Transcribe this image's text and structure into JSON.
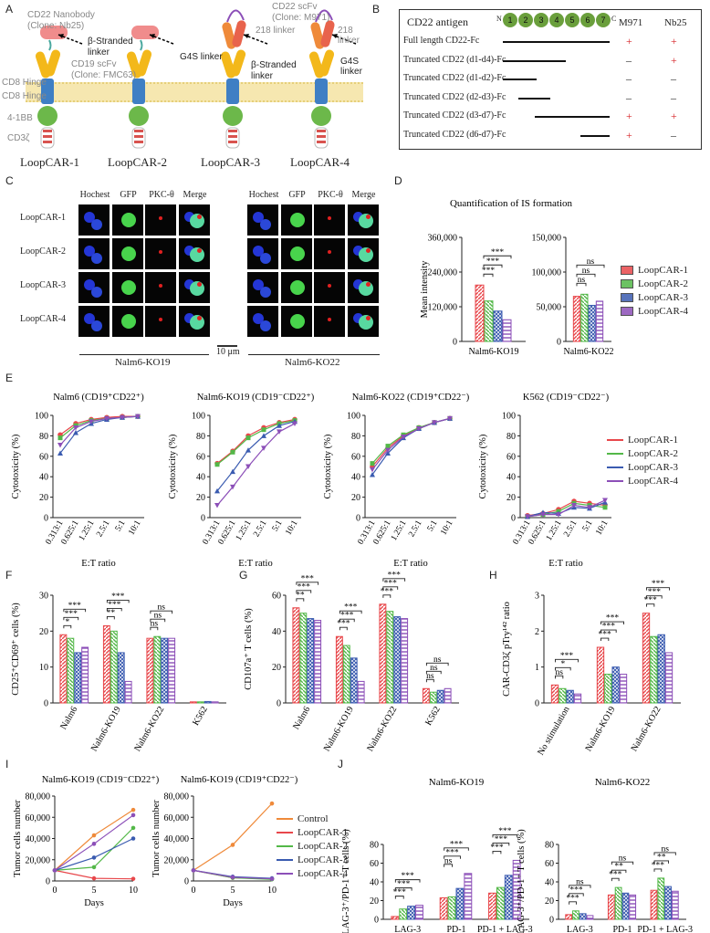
{
  "panels": [
    "A",
    "B",
    "C",
    "D",
    "E",
    "F",
    "G",
    "H",
    "I",
    "J"
  ],
  "panelA": {
    "constructs": [
      "LoopCAR-1",
      "LoopCAR-2",
      "LoopCAR-3",
      "LoopCAR-4"
    ],
    "domains": [
      "CD8 Hinge",
      "CD8 Hinge",
      "4-1BB",
      "CD3ζ"
    ],
    "nb_label": "CD22 Nanobody",
    "nb_clone": "(Clone: Nb25)",
    "scfv19_label": "CD19 scFv",
    "scfv19_clone": "(Clone: FMC63)",
    "scfv22_label": "CD22 scFv",
    "scfv22_clone": "(Clone: M971)",
    "beta_linker": "β-Stranded linker",
    "g4s_linker": "G4S linker",
    "linker218": "218 linker"
  },
  "panelB": {
    "title": "CD22 antigen",
    "n": "N",
    "c": "C",
    "domains": [
      "1",
      "2",
      "3",
      "4",
      "5",
      "6",
      "7"
    ],
    "cols": [
      "M971",
      "Nb25"
    ],
    "rows": [
      {
        "label": "Full length CD22-Fc",
        "m971": "+",
        "nb25": "+"
      },
      {
        "label": "Truncated CD22 (d1-d4)-Fc",
        "m971": "–",
        "nb25": "+"
      },
      {
        "label": "Truncated CD22 (d1-d2)-Fc",
        "m971": "–",
        "nb25": "–"
      },
      {
        "label": "Truncated CD22 (d2-d3)-Fc",
        "m971": "–",
        "nb25": "–"
      },
      {
        "label": "Truncated CD22 (d3-d7)-Fc",
        "m971": "+",
        "nb25": "+"
      },
      {
        "label": "Truncated CD22 (d6-d7)-Fc",
        "m971": "+",
        "nb25": "–"
      }
    ]
  },
  "panelC": {
    "cols": [
      "Hochest",
      "GFP",
      "PKC-θ",
      "Merge"
    ],
    "rows": [
      "LoopCAR-1",
      "LoopCAR-2",
      "LoopCAR-3",
      "LoopCAR-4"
    ],
    "groups": [
      "Nalm6-KO19",
      "Nalm6-KO22"
    ],
    "scale": "10 μm"
  },
  "colors": {
    "LoopCAR-1": "#e8474b",
    "LoopCAR-2": "#53b848",
    "LoopCAR-3": "#3a5bb0",
    "LoopCAR-4": "#8c4fb8",
    "Control": "#ef8a3a",
    "sig": "#222222"
  },
  "legendNames": [
    "LoopCAR-1",
    "LoopCAR-2",
    "LoopCAR-3",
    "LoopCAR-4"
  ],
  "chart_data": [
    {
      "id": "D",
      "type": "bar",
      "title": "Quantification of IS formation",
      "ylabel": "Mean intensity",
      "subplots": [
        {
          "categories": [
            "Nalm6-KO19"
          ],
          "ylim": [
            0,
            360000
          ],
          "yticks": [
            "0",
            "120,000",
            "240,000",
            "360,000"
          ],
          "series": [
            {
              "name": "LoopCAR-1",
              "values": [
                195000
              ]
            },
            {
              "name": "LoopCAR-2",
              "values": [
                140000
              ]
            },
            {
              "name": "LoopCAR-3",
              "values": [
                105000
              ]
            },
            {
              "name": "LoopCAR-4",
              "values": [
                75000
              ]
            }
          ],
          "sig": [
            "***",
            "***",
            "***"
          ]
        },
        {
          "categories": [
            "Nalm6-KO22"
          ],
          "ylim": [
            0,
            150000
          ],
          "yticks": [
            "0",
            "50,000",
            "100,000",
            "150,000"
          ],
          "series": [
            {
              "name": "LoopCAR-1",
              "values": [
                65000
              ]
            },
            {
              "name": "LoopCAR-2",
              "values": [
                68000
              ]
            },
            {
              "name": "LoopCAR-3",
              "values": [
                52000
              ]
            },
            {
              "name": "LoopCAR-4",
              "values": [
                58000
              ]
            }
          ],
          "sig": [
            "ns",
            "ns",
            "ns"
          ]
        }
      ]
    },
    {
      "id": "E",
      "type": "line",
      "ylabel": "Cytotoxicity (%)",
      "xlabel": "E:T ratio",
      "ylim": [
        0,
        100
      ],
      "x": [
        "0.313:1",
        "0.625:1",
        "1.25:1",
        "2.5:1",
        "5:1",
        "10:1"
      ],
      "subplots": [
        {
          "title": "Nalm6 (CD19⁺CD22⁺)",
          "series": [
            {
              "name": "LoopCAR-1",
              "values": [
                81,
                92,
                96,
                98,
                99,
                99
              ]
            },
            {
              "name": "LoopCAR-2",
              "values": [
                78,
                90,
                95,
                97,
                98,
                99
              ]
            },
            {
              "name": "LoopCAR-3",
              "values": [
                63,
                83,
                92,
                96,
                98,
                99
              ]
            },
            {
              "name": "LoopCAR-4",
              "values": [
                71,
                88,
                94,
                97,
                98,
                99
              ]
            }
          ]
        },
        {
          "title": "Nalm6-KO19 (CD19⁻CD22⁺)",
          "series": [
            {
              "name": "LoopCAR-1",
              "values": [
                53,
                65,
                80,
                88,
                93,
                96
              ]
            },
            {
              "name": "LoopCAR-2",
              "values": [
                52,
                64,
                78,
                86,
                92,
                95
              ]
            },
            {
              "name": "LoopCAR-3",
              "values": [
                26,
                45,
                66,
                80,
                90,
                94
              ]
            },
            {
              "name": "LoopCAR-4",
              "values": [
                12,
                30,
                50,
                68,
                84,
                92
              ]
            }
          ]
        },
        {
          "title": "Nalm6-KO22 (CD19⁺CD22⁻)",
          "series": [
            {
              "name": "LoopCAR-1",
              "values": [
                50,
                68,
                80,
                88,
                93,
                97
              ]
            },
            {
              "name": "LoopCAR-2",
              "values": [
                53,
                70,
                81,
                88,
                93,
                97
              ]
            },
            {
              "name": "LoopCAR-3",
              "values": [
                42,
                63,
                78,
                87,
                93,
                97
              ]
            },
            {
              "name": "LoopCAR-4",
              "values": [
                47,
                66,
                79,
                87,
                93,
                97
              ]
            }
          ]
        },
        {
          "title": "K562 (CD19⁻CD22⁻)",
          "series": [
            {
              "name": "LoopCAR-1",
              "values": [
                2,
                4,
                8,
                16,
                14,
                12
              ]
            },
            {
              "name": "LoopCAR-2",
              "values": [
                1,
                3,
                6,
                14,
                12,
                10
              ]
            },
            {
              "name": "LoopCAR-3",
              "values": [
                1,
                5,
                4,
                10,
                9,
                15
              ]
            },
            {
              "name": "LoopCAR-4",
              "values": [
                1,
                3,
                3,
                12,
                10,
                17
              ]
            }
          ]
        }
      ]
    },
    {
      "id": "F",
      "type": "bar",
      "ylabel": "CD25⁺CD69⁺ cells (%)",
      "ylim": [
        0,
        30
      ],
      "yticks": [
        "0",
        "10",
        "20",
        "30"
      ],
      "categories": [
        "Nalm6",
        "Nalm6-KO19",
        "Nalm6-KO22",
        "K562"
      ],
      "series": [
        {
          "name": "LoopCAR-1",
          "values": [
            19,
            21.5,
            18,
            0.3
          ]
        },
        {
          "name": "LoopCAR-2",
          "values": [
            18,
            20,
            18.5,
            0.3
          ]
        },
        {
          "name": "LoopCAR-3",
          "values": [
            14,
            14,
            18,
            0.4
          ]
        },
        {
          "name": "LoopCAR-4",
          "values": [
            15.5,
            6,
            18,
            0.3
          ]
        }
      ],
      "sig": [
        [
          "*",
          "***",
          "***"
        ],
        [
          "**",
          "***",
          "***"
        ],
        [
          "ns",
          "ns",
          "ns"
        ]
      ]
    },
    {
      "id": "G",
      "type": "bar",
      "ylabel": "CD107a⁺ T cells (%)",
      "ylim": [
        0,
        60
      ],
      "yticks": [
        "0",
        "20",
        "40",
        "60"
      ],
      "categories": [
        "Nalm6",
        "Nalm6-KO19",
        "Nalm6-KO22",
        "K562"
      ],
      "series": [
        {
          "name": "LoopCAR-1",
          "values": [
            53,
            37,
            55,
            8
          ]
        },
        {
          "name": "LoopCAR-2",
          "values": [
            50,
            32,
            51,
            6
          ]
        },
        {
          "name": "LoopCAR-3",
          "values": [
            47,
            25,
            48,
            7
          ]
        },
        {
          "name": "LoopCAR-4",
          "values": [
            46,
            12,
            47,
            8
          ]
        }
      ],
      "sig": [
        [
          "**",
          "***",
          "***"
        ],
        [
          "***",
          "***",
          "***"
        ],
        [
          "***",
          "***",
          "***"
        ],
        [
          "ns",
          "ns",
          "ns"
        ]
      ]
    },
    {
      "id": "H",
      "type": "bar",
      "ylabel": "CAR-CD3ζ pTry¹⁴² ratio",
      "ylim": [
        0,
        3
      ],
      "yticks": [
        "0",
        "1",
        "2",
        "3"
      ],
      "categories": [
        "No stimulation",
        "Nalm6-KO19",
        "Nalm6-KO22"
      ],
      "series": [
        {
          "name": "LoopCAR-1",
          "values": [
            0.5,
            1.55,
            2.5
          ]
        },
        {
          "name": "LoopCAR-2",
          "values": [
            0.4,
            0.8,
            1.85
          ]
        },
        {
          "name": "LoopCAR-3",
          "values": [
            0.35,
            1.0,
            1.9
          ]
        },
        {
          "name": "LoopCAR-4",
          "values": [
            0.25,
            0.8,
            1.4
          ]
        }
      ],
      "sig": [
        [
          "ns",
          "*",
          "***"
        ],
        [
          "***",
          "***",
          "***"
        ],
        [
          "***",
          "***",
          "***"
        ]
      ]
    },
    {
      "id": "I",
      "type": "line",
      "ylabel": "Tumor cells number",
      "xlabel": "Days",
      "ylim": [
        0,
        80000
      ],
      "yticks": [
        "0",
        "20,000",
        "40,000",
        "60,000",
        "80,000"
      ],
      "x": [
        0,
        5,
        10
      ],
      "subplots": [
        {
          "title": "Nalm6-KO19 (CD19⁻CD22⁺)",
          "series": [
            {
              "name": "Control",
              "values": [
                10000,
                43000,
                67000
              ]
            },
            {
              "name": "LoopCAR-1",
              "values": [
                10000,
                2500,
                2000
              ]
            },
            {
              "name": "LoopCAR-2",
              "values": [
                10000,
                13000,
                50000
              ]
            },
            {
              "name": "LoopCAR-3",
              "values": [
                10000,
                22000,
                40000
              ]
            },
            {
              "name": "LoopCAR-4",
              "values": [
                10000,
                35000,
                62000
              ]
            }
          ]
        },
        {
          "title": "Nalm6-KO19 (CD19⁺CD22⁻)",
          "series": [
            {
              "name": "Control",
              "values": [
                10000,
                34000,
                73000
              ]
            },
            {
              "name": "LoopCAR-1",
              "values": [
                10000,
                3000,
                2000
              ]
            },
            {
              "name": "LoopCAR-2",
              "values": [
                10000,
                3000,
                1500
              ]
            },
            {
              "name": "LoopCAR-3",
              "values": [
                10000,
                4000,
                2500
              ]
            },
            {
              "name": "LoopCAR-4",
              "values": [
                10000,
                3500,
                2000
              ]
            }
          ]
        }
      ],
      "legend": [
        "Control",
        "LoopCAR-1",
        "LoopCAR-2",
        "LoopCAR-3",
        "LoopCAR-4"
      ]
    },
    {
      "id": "J",
      "type": "bar",
      "ylabel": "LAG-3⁺/PD-1⁺ T cells (%)",
      "ylim": [
        0,
        80
      ],
      "yticks": [
        "0",
        "20",
        "40",
        "60",
        "80"
      ],
      "subplots": [
        {
          "title": "Nalm6-KO19",
          "categories": [
            "LAG-3",
            "PD-1",
            "PD-1 + LAG-3"
          ],
          "series": [
            {
              "name": "LoopCAR-1",
              "values": [
                3,
                23,
                28
              ]
            },
            {
              "name": "LoopCAR-2",
              "values": [
                11,
                24,
                34
              ]
            },
            {
              "name": "LoopCAR-3",
              "values": [
                14,
                33,
                47
              ]
            },
            {
              "name": "LoopCAR-4",
              "values": [
                15,
                49,
                63
              ]
            }
          ],
          "sig": [
            [
              "***",
              "***",
              "***"
            ],
            [
              "ns",
              "***",
              "***"
            ],
            [
              "***",
              "***",
              "***"
            ]
          ]
        },
        {
          "title": "Nalm6-KO22",
          "categories": [
            "LAG-3",
            "PD-1",
            "PD-1 + LAG-3"
          ],
          "series": [
            {
              "name": "LoopCAR-1",
              "values": [
                5,
                26,
                31
              ]
            },
            {
              "name": "LoopCAR-2",
              "values": [
                9,
                34,
                44
              ]
            },
            {
              "name": "LoopCAR-3",
              "values": [
                6,
                28,
                35
              ]
            },
            {
              "name": "LoopCAR-4",
              "values": [
                4,
                26,
                30
              ]
            }
          ],
          "sig": [
            [
              "***",
              "***",
              "ns"
            ],
            [
              "***",
              "**",
              "ns"
            ],
            [
              "***",
              "**",
              "ns"
            ]
          ]
        }
      ]
    }
  ]
}
